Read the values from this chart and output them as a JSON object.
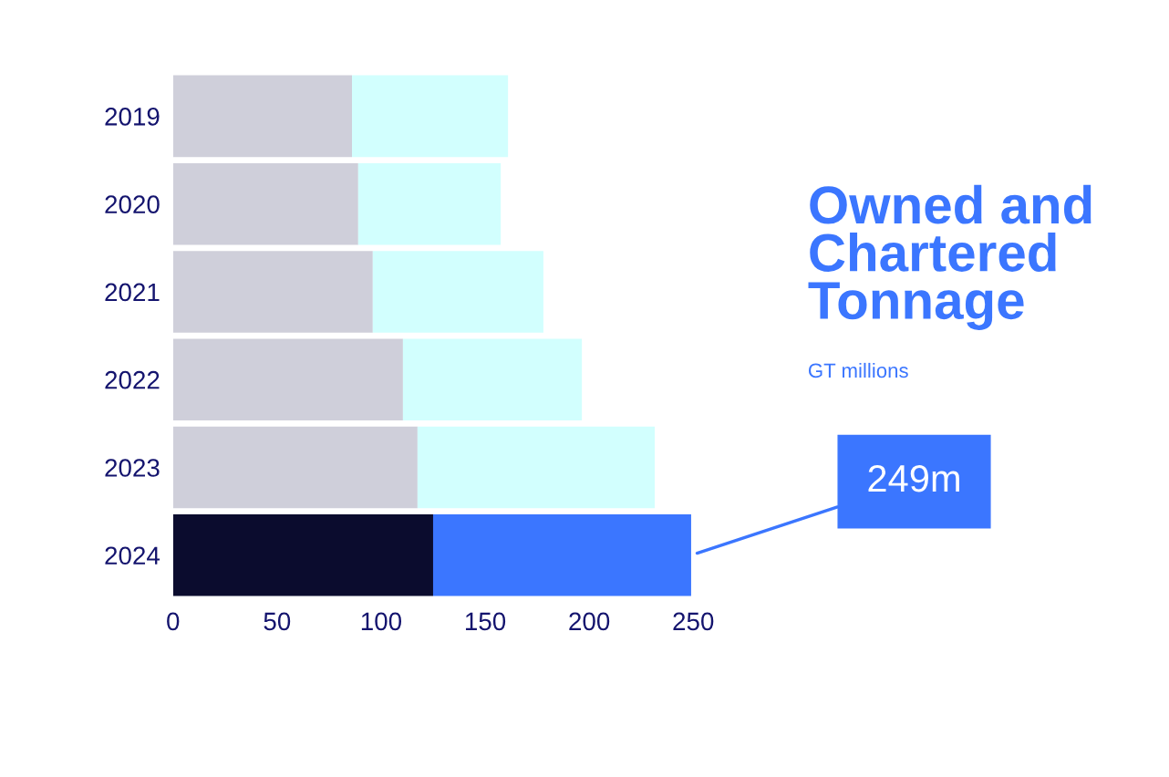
{
  "chart_data": {
    "type": "bar",
    "orientation": "horizontal",
    "stacked": true,
    "title": "Owned and Chartered Tonnage",
    "subtitle": "GT millions",
    "categories": [
      "2019",
      "2020",
      "2021",
      "2022",
      "2023",
      "2024"
    ],
    "series": [
      {
        "colors": [
          "#cfcfda",
          "#cfcfda",
          "#cfcfda",
          "#cfcfda",
          "#cfcfda",
          "#0b0c2e"
        ],
        "values": [
          86,
          89,
          96,
          110.5,
          117.5,
          125
        ]
      },
      {
        "colors": [
          "#d2fffe",
          "#d2fffe",
          "#d2fffe",
          "#d2fffe",
          "#d2fffe",
          "#3b76ff"
        ],
        "values": [
          75,
          68.5,
          82,
          86,
          114,
          124
        ]
      }
    ],
    "xlim": [
      0,
      250
    ],
    "xticks": [
      0,
      50,
      100,
      150,
      200,
      250
    ],
    "grid": false,
    "legend": false,
    "annotations": [
      {
        "text": "249m",
        "x": 249,
        "y": "2024"
      }
    ]
  }
}
